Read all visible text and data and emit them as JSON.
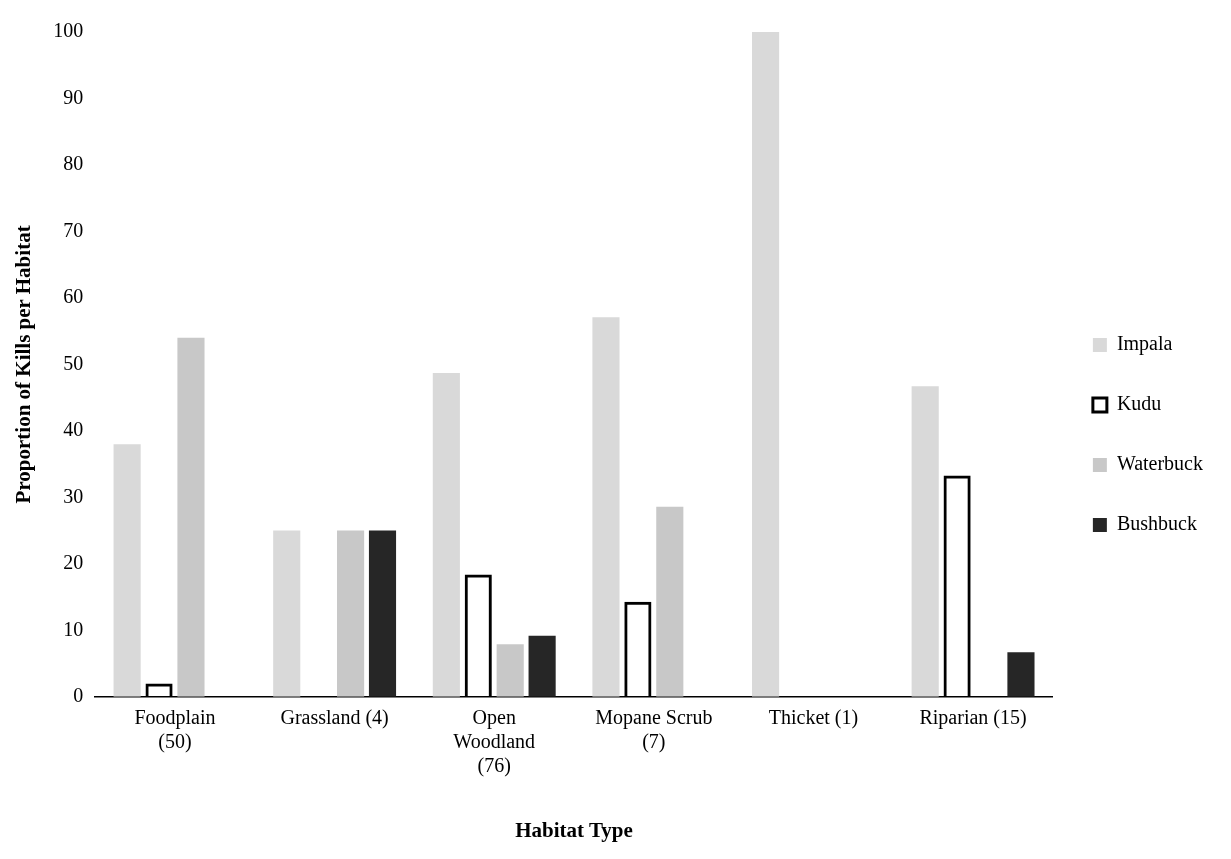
{
  "chart_data": {
    "type": "bar",
    "xlabel": "Habitat Type",
    "ylabel": "Proportion of Kills per Habitat",
    "categories": [
      "Foodplain (50)",
      "Grassland (4)",
      "Open Woodland (76)",
      "Mopane Scrub (7)",
      "Thicket (1)",
      "Riparian (15)"
    ],
    "series": [
      {
        "name": "Impala",
        "color": "#d9d9d9",
        "values": [
          38,
          25,
          48.7,
          57.1,
          100,
          46.7
        ]
      },
      {
        "name": "Kudu",
        "color": "#000000",
        "values": [
          2,
          0,
          18.4,
          14.3,
          0,
          33.3
        ]
      },
      {
        "name": "Waterbuck",
        "color": "#c8c8c8",
        "values": [
          54,
          25,
          7.9,
          28.6,
          0,
          0
        ]
      },
      {
        "name": "Bushbuck",
        "color": "#262626",
        "values": [
          0,
          25,
          9.2,
          0,
          0,
          6.7
        ]
      }
    ],
    "ylim": [
      0,
      100
    ],
    "yticks": [
      0,
      10,
      20,
      30,
      40,
      50,
      60,
      70,
      80,
      90,
      100
    ],
    "grid": false,
    "legend": "right"
  }
}
